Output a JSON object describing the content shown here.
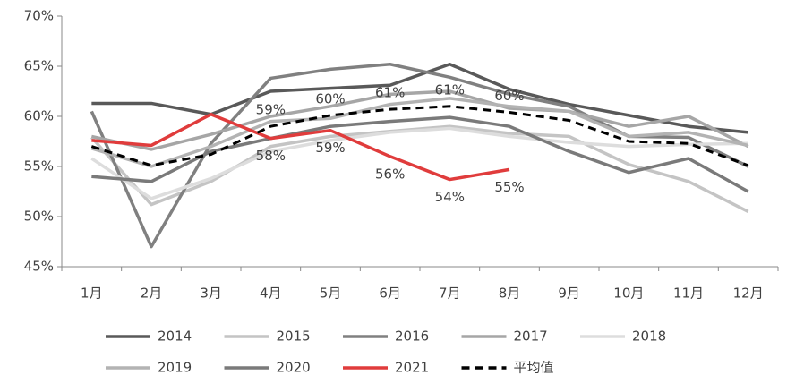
{
  "chart_data": {
    "type": "line",
    "categories": [
      "1月",
      "2月",
      "3月",
      "4月",
      "5月",
      "6月",
      "7月",
      "8月",
      "9月",
      "10月",
      "11月",
      "12月"
    ],
    "ylim": [
      45,
      70
    ],
    "yticks": [
      {
        "value": 45,
        "label": "45%"
      },
      {
        "value": 50,
        "label": "50%"
      },
      {
        "value": 55,
        "label": "55%"
      },
      {
        "value": 60,
        "label": "60%"
      },
      {
        "value": 65,
        "label": "65%"
      },
      {
        "value": 70,
        "label": "70%"
      }
    ],
    "grid": false,
    "series": [
      {
        "name": "2014",
        "color": "#595959",
        "values": [
          61.3,
          61.3,
          60.2,
          62.5,
          62.8,
          63.1,
          65.2,
          62.7,
          61.2,
          60.1,
          59.0,
          58.4
        ]
      },
      {
        "name": "2015",
        "color": "#c4c4c4",
        "values": [
          57.9,
          51.2,
          53.5,
          57.0,
          58.0,
          58.5,
          59.0,
          58.3,
          58.0,
          55.2,
          53.5,
          50.5
        ]
      },
      {
        "name": "2016",
        "color": "#808080",
        "values": [
          60.5,
          47.0,
          57.3,
          63.8,
          64.7,
          65.2,
          63.9,
          62.2,
          61.0,
          58.0,
          57.9,
          55.0
        ]
      },
      {
        "name": "2017",
        "color": "#a6a6a6",
        "values": [
          58.0,
          56.7,
          58.2,
          60.0,
          61.0,
          62.2,
          62.5,
          60.8,
          60.5,
          59.0,
          60.0,
          57.0
        ]
      },
      {
        "name": "2018",
        "color": "#dddddd",
        "values": [
          55.8,
          51.8,
          53.8,
          56.5,
          57.6,
          58.4,
          58.8,
          58.0,
          57.4,
          57.0,
          57.2,
          57.3
        ]
      },
      {
        "name": "2019",
        "color": "#b3b3b3",
        "values": [
          56.8,
          55.0,
          57.0,
          59.5,
          59.8,
          61.2,
          61.8,
          61.0,
          60.5,
          58.0,
          58.4,
          57.1
        ]
      },
      {
        "name": "2020",
        "color": "#7a7a7a",
        "values": [
          54.0,
          53.5,
          56.5,
          57.8,
          59.0,
          59.5,
          59.9,
          59.0,
          56.5,
          54.4,
          55.8,
          52.5
        ]
      },
      {
        "name": "2021",
        "color": "#e03c3c",
        "values": [
          57.6,
          57.1,
          60.2,
          57.8,
          58.6,
          56.0,
          53.7,
          54.7,
          null,
          null,
          null,
          null
        ],
        "value_labels": [
          null,
          null,
          null,
          "58%",
          "59%",
          "56%",
          "54%",
          "55%",
          null,
          null,
          null,
          null
        ],
        "label_side": "below"
      },
      {
        "name": "平均值",
        "color": "#000000",
        "dashed": true,
        "values": [
          57.0,
          55.1,
          56.2,
          59.0,
          60.1,
          60.7,
          61.0,
          60.4,
          59.6,
          57.5,
          57.3,
          55.1
        ],
        "value_labels": [
          null,
          null,
          null,
          "59%",
          "60%",
          "61%",
          "61%",
          "60%",
          null,
          null,
          null,
          null
        ],
        "label_side": "above"
      }
    ]
  }
}
